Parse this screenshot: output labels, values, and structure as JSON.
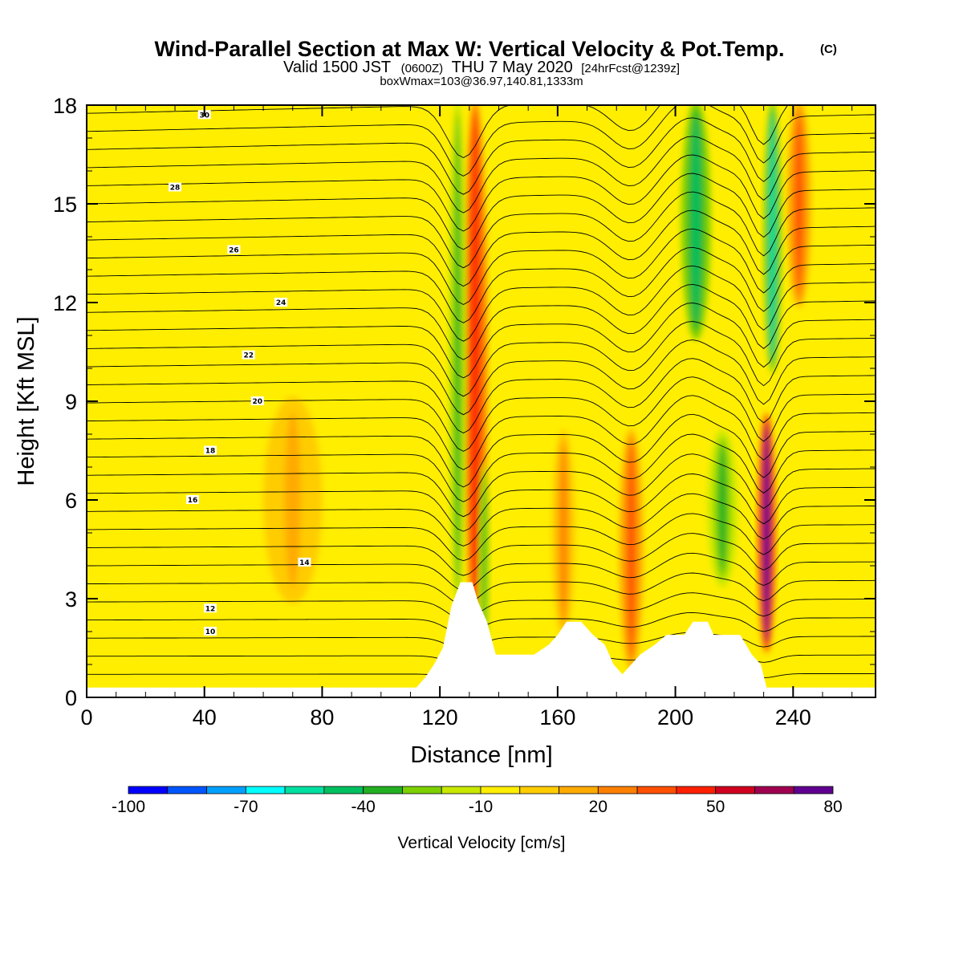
{
  "header": {
    "title": "Wind-Parallel Section at Max W: Vertical Velocity & Pot.Temp.",
    "title_mark": "(C)",
    "subtitle_a": "Valid 1500 JST",
    "subtitle_b": "(0600Z)",
    "subtitle_c": "THU 7 May 2020",
    "subtitle_d": "[24hrFcst@1239z]",
    "info": "boxWmax=103@36.97,140.81,1333m"
  },
  "chart_data": {
    "type": "heatmap",
    "title": "Wind-Parallel Section at Max W: Vertical Velocity & Pot.Temp.",
    "xlabel": "Distance [nm]",
    "ylabel": "Height [Kft MSL]",
    "xlim": [
      0,
      268
    ],
    "ylim": [
      0,
      18
    ],
    "x_ticks": [
      "0",
      "40",
      "80",
      "120",
      "160",
      "200",
      "240"
    ],
    "y_ticks": [
      "0",
      "3",
      "6",
      "9",
      "12",
      "15",
      "18"
    ],
    "grid": false,
    "colorbar": {
      "label": "Vertical Velocity [cm/s]",
      "placement": "bottom",
      "tick_labels": [
        "-100",
        "-70",
        "-40",
        "-10",
        "20",
        "50",
        "80"
      ],
      "colors": [
        "#0000ff",
        "#0055ff",
        "#00a0ff",
        "#00ffff",
        "#00e0a0",
        "#00c060",
        "#22b022",
        "#7dd000",
        "#c8e800",
        "#ffee00",
        "#ffcc00",
        "#ffaa00",
        "#ff8000",
        "#ff5000",
        "#ff2000",
        "#d00020",
        "#a00050",
        "#600090"
      ]
    },
    "velocity_features": [
      {
        "x": 132,
        "z_from": 2.5,
        "z_to": 18,
        "w": 45,
        "width": 4,
        "note": "updraft"
      },
      {
        "x": 126,
        "z_from": 3,
        "z_to": 18,
        "w": -40,
        "width": 3,
        "note": "downdraft"
      },
      {
        "x": 135,
        "z_from": 1.5,
        "z_to": 7,
        "w": -40,
        "width": 2
      },
      {
        "x": 185,
        "z_from": 1,
        "z_to": 8,
        "w": 30,
        "width": 4
      },
      {
        "x": 162,
        "z_from": 2,
        "z_to": 8,
        "w": 20,
        "width": 4
      },
      {
        "x": 207,
        "z_from": 11,
        "z_to": 18,
        "w": -45,
        "width": 5
      },
      {
        "x": 216,
        "z_from": 3.5,
        "z_to": 8,
        "w": -40,
        "width": 5
      },
      {
        "x": 233,
        "z_from": 10,
        "z_to": 18,
        "w": -60,
        "width": 3
      },
      {
        "x": 231,
        "z_from": 1.5,
        "z_to": 8.5,
        "w": 80,
        "width": 3
      },
      {
        "x": 242,
        "z_from": 12,
        "z_to": 18,
        "w": 30,
        "width": 4
      },
      {
        "x": 70,
        "z_from": 3,
        "z_to": 9,
        "w": 10,
        "width": 10
      }
    ],
    "theta_label_values": [
      "30",
      "28",
      "26",
      "24",
      "22",
      "20",
      "18",
      "16",
      "14",
      "12",
      "10"
    ],
    "terrain_nm_kft": [
      [
        0,
        0.3
      ],
      [
        112,
        0.3
      ],
      [
        115,
        0.6
      ],
      [
        118,
        1.0
      ],
      [
        121,
        1.5
      ],
      [
        124,
        2.8
      ],
      [
        127,
        3.5
      ],
      [
        131,
        3.5
      ],
      [
        133,
        2.9
      ],
      [
        136,
        2.3
      ],
      [
        139,
        1.3
      ],
      [
        152,
        1.3
      ],
      [
        157,
        1.6
      ],
      [
        160,
        1.9
      ],
      [
        163,
        2.3
      ],
      [
        168,
        2.3
      ],
      [
        172,
        1.9
      ],
      [
        176,
        1.6
      ],
      [
        179,
        1.0
      ],
      [
        182,
        0.7
      ],
      [
        185,
        1.0
      ],
      [
        188,
        1.3
      ],
      [
        193,
        1.6
      ],
      [
        197,
        1.9
      ],
      [
        203,
        1.9
      ],
      [
        206,
        2.3
      ],
      [
        211,
        2.3
      ],
      [
        213,
        1.9
      ],
      [
        222,
        1.9
      ],
      [
        226,
        1.3
      ],
      [
        229,
        1.0
      ],
      [
        231,
        0.3
      ],
      [
        268,
        0.3
      ]
    ]
  }
}
